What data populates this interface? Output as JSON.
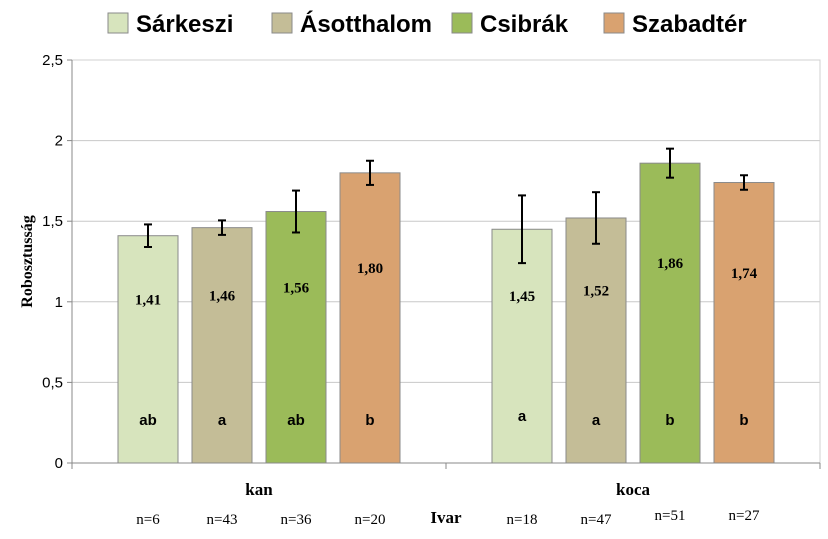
{
  "chart_data": {
    "type": "bar",
    "categories": [
      "kan",
      "koca"
    ],
    "xlabel": "Ivar",
    "ylabel": "Robosztusság",
    "ylim": [
      0,
      2.5
    ],
    "yticks": [
      "0",
      "0,5",
      "1",
      "1,5",
      "2",
      "2,5"
    ],
    "grid": true,
    "legend_position": "top",
    "series": [
      {
        "name": "Sárkeszi",
        "color": "#d7e4bd",
        "values": [
          1.41,
          1.45
        ],
        "value_labels": [
          "1,41",
          "1,45"
        ],
        "error": [
          0.07,
          0.21
        ],
        "significance": [
          "ab",
          "a"
        ],
        "n": [
          "n=6",
          "n=18"
        ]
      },
      {
        "name": "Ásotthalom",
        "color": "#c4bd97",
        "values": [
          1.46,
          1.52
        ],
        "value_labels": [
          "1,46",
          "1,52"
        ],
        "error": [
          0.045,
          0.16
        ],
        "significance": [
          "a",
          "a"
        ],
        "n": [
          "n=43",
          "n=47"
        ]
      },
      {
        "name": "Csibrák",
        "color": "#9bbb59",
        "values": [
          1.56,
          1.86
        ],
        "value_labels": [
          "1,56",
          "1,86"
        ],
        "error": [
          0.13,
          0.09
        ],
        "significance": [
          "ab",
          "b"
        ],
        "n": [
          "n=36",
          "n=51"
        ]
      },
      {
        "name": "Szabadtér",
        "color": "#d9a270",
        "values": [
          1.8,
          1.74
        ],
        "value_labels": [
          "1,80",
          "1,74"
        ],
        "error": [
          0.075,
          0.045
        ],
        "significance": [
          "b",
          "b"
        ],
        "n": [
          "n=20",
          "n=27"
        ]
      }
    ]
  }
}
